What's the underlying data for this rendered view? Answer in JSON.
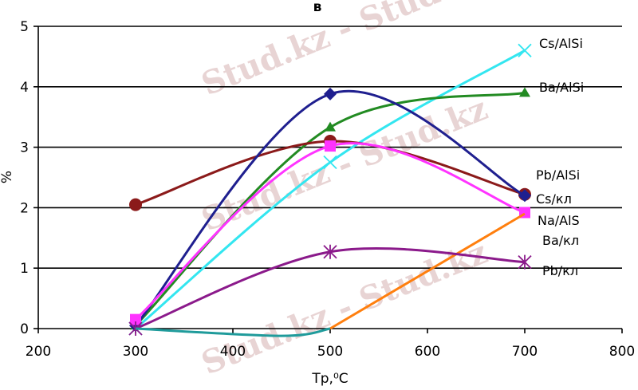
{
  "chart_data": {
    "type": "line",
    "title": "в",
    "xlabel": "Tp,⁰C",
    "ylabel": "%",
    "xlim": [
      200,
      800
    ],
    "ylim": [
      0,
      5
    ],
    "xticks": [
      200,
      300,
      400,
      500,
      600,
      700,
      800
    ],
    "yticks": [
      0,
      1,
      2,
      3,
      4,
      5
    ],
    "grid": "horizontal",
    "watermark": "Stud.kz - Stud.kz",
    "series": [
      {
        "name": "Cs/AlSi",
        "color": "#33e6f0",
        "marker": "x",
        "x": [
          300,
          500,
          700
        ],
        "y": [
          0.0,
          2.75,
          4.6
        ]
      },
      {
        "name": "Ba/AlSi",
        "color": "#228b22",
        "marker": "triangle",
        "x": [
          300,
          500,
          700
        ],
        "y": [
          0.05,
          3.33,
          3.9
        ]
      },
      {
        "name": "Pb/AlSi",
        "color": "#8b1a1a",
        "marker": "circle",
        "x": [
          300,
          500,
          700
        ],
        "y": [
          2.05,
          3.1,
          2.22
        ]
      },
      {
        "name": "Cs/кл",
        "color": "#1f1f8f",
        "marker": "diamond",
        "x": [
          300,
          500,
          700
        ],
        "y": [
          0.05,
          3.88,
          2.2
        ]
      },
      {
        "name": "Na/AlS",
        "color": "#ff33ff",
        "marker": "square",
        "x": [
          300,
          500,
          700
        ],
        "y": [
          0.15,
          3.02,
          1.92
        ]
      },
      {
        "name": "Ba/кл",
        "color": "#ff7f0e",
        "marker": "none",
        "x": [
          500,
          700
        ],
        "y": [
          0.0,
          1.9
        ]
      },
      {
        "name": "Pb/кл",
        "color": "#8b1a8b",
        "marker": "asterisk",
        "x": [
          300,
          500,
          700
        ],
        "y": [
          0.0,
          1.27,
          1.1
        ]
      },
      {
        "name": "",
        "color": "#1f9b9b",
        "marker": "none",
        "x": [
          300,
          450,
          500
        ],
        "y": [
          0.0,
          -0.12,
          0.0
        ]
      }
    ]
  }
}
